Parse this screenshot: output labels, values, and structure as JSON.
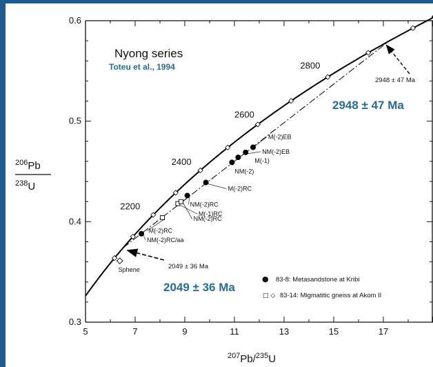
{
  "colors": {
    "background": "#1d5b8c",
    "accent": "#2b6b8f",
    "concordia": "#000000"
  },
  "chart_data": {
    "type": "scatter",
    "title": "Nyong series",
    "subtitle": "Toteu et al., 1994",
    "xlabel": {
      "sup": "207",
      "base": "Pb/",
      "sup2": "235",
      "base2": "U"
    },
    "ylabel": {
      "num_sup": "206",
      "num_base": "Pb",
      "den_sup": "238",
      "den_base": "U"
    },
    "xlim": [
      5,
      19
    ],
    "ylim": [
      0.3,
      0.6
    ],
    "xticks": [
      5,
      7,
      9,
      11,
      13,
      15,
      17
    ],
    "xtick_labels": [
      "5",
      "7",
      "9",
      "11",
      "13",
      "15",
      "17"
    ],
    "yticks": [
      0.3,
      0.4,
      0.5,
      0.6
    ],
    "ytick_labels": [
      "0.3",
      "0.4",
      "0.5",
      "0.6"
    ],
    "concordia_ages": [
      {
        "age": 2200,
        "label": "2200"
      },
      {
        "age": 2400,
        "label": "2400"
      },
      {
        "age": 2600,
        "label": "2600"
      },
      {
        "age": 2800,
        "label": "2800"
      }
    ],
    "discordia": {
      "lower_intercept_ma": 2049,
      "upper_intercept_ma": 2948
    },
    "intercept_labels": {
      "upper_small": "2948 ± 47 Ma",
      "lower_small": "2049 ± 36 Ma",
      "upper_big": "2948 ± 47 Ma",
      "lower_big": "2049 ± 36 Ma"
    },
    "series": [
      {
        "name": "83-8: Metasandstone at Kribi",
        "marker": "filled-circle",
        "points": [
          {
            "x": 11.75,
            "y": 0.474,
            "label": "M(-2)EB"
          },
          {
            "x": 11.45,
            "y": 0.469,
            "label": "NM(-2)EB"
          },
          {
            "x": 11.15,
            "y": 0.464,
            "label": "M(-1)"
          },
          {
            "x": 10.9,
            "y": 0.459,
            "label": "NM(-2)"
          },
          {
            "x": 9.85,
            "y": 0.439,
            "label": "M(-2)RC"
          },
          {
            "x": 9.1,
            "y": 0.426,
            "label": "NM(-2)RC"
          },
          {
            "x": 7.25,
            "y": 0.388,
            "label": "NM(-2)RC/aa"
          }
        ]
      },
      {
        "name": "83-14: Migmatitic gneiss at Akom II",
        "marker": "open-square",
        "points": [
          {
            "x": 8.72,
            "y": 0.418,
            "label": "M(-1)RC"
          },
          {
            "x": 8.85,
            "y": 0.42,
            "label": "NM(-2)RC"
          },
          {
            "x": 8.1,
            "y": 0.404,
            "label": "M(-2)RC"
          }
        ]
      },
      {
        "name": "Sphene",
        "marker": "open-diamond",
        "points": [
          {
            "x": 6.38,
            "y": 0.361,
            "label": "Sphene"
          }
        ]
      }
    ],
    "legend": [
      {
        "symbol": "●",
        "text": "83-8: Metasandstone at Kribi"
      },
      {
        "symbol": "□ ◇",
        "text": "83-14: Migmatitic gneiss at Akom II"
      }
    ]
  }
}
